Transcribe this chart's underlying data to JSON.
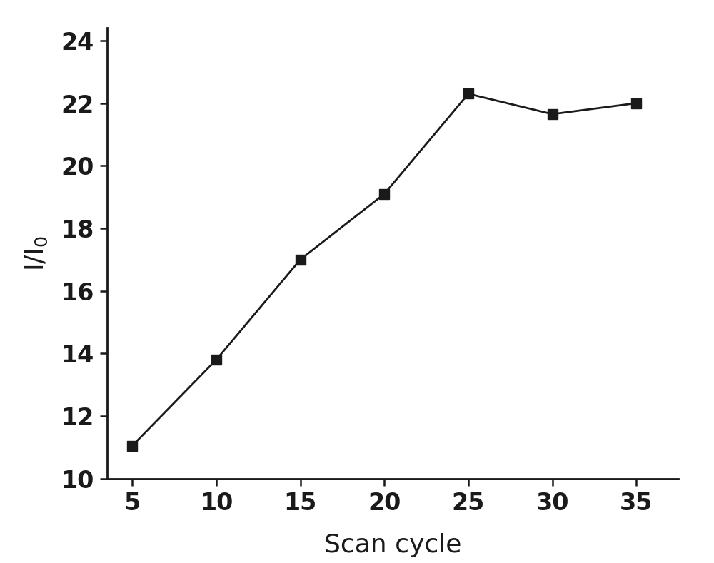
{
  "x": [
    5,
    10,
    15,
    20,
    25,
    30,
    35
  ],
  "y": [
    11.05,
    13.8,
    17.0,
    19.1,
    22.3,
    21.65,
    22.0
  ],
  "xlim": [
    3.5,
    37.5
  ],
  "ylim": [
    10,
    24.4
  ],
  "xticks": [
    5,
    10,
    15,
    20,
    25,
    30,
    35
  ],
  "yticks": [
    10,
    12,
    14,
    16,
    18,
    20,
    22,
    24
  ],
  "xlabel": "Scan cycle",
  "ylabel": "I/I",
  "ylabel_sub": "0",
  "line_color": "#1a1a1a",
  "marker": "s",
  "marker_color": "#1a1a1a",
  "marker_size": 10,
  "line_width": 2.0,
  "xlabel_fontsize": 26,
  "ylabel_fontsize": 26,
  "tick_fontsize": 24,
  "background_color": "#ffffff",
  "figure_color": "#ffffff"
}
